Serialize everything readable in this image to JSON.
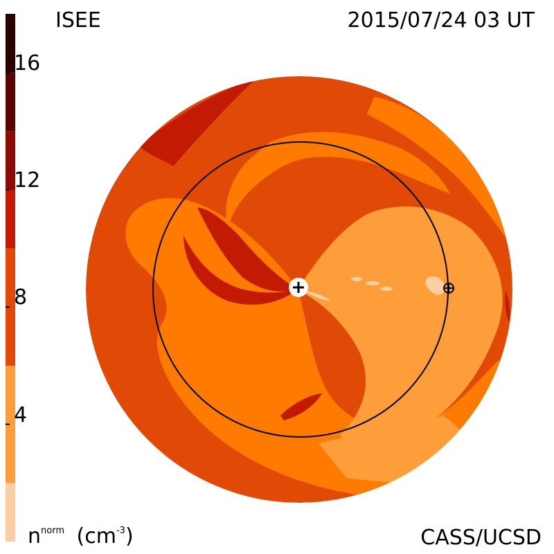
{
  "header": {
    "source": "ISEE",
    "timestamp": "2015/07/24 03 UT"
  },
  "footer": {
    "credit": "CASS/UCSD",
    "unit_label": "n",
    "unit_sup": "norm",
    "unit_tail": "(cm",
    "unit_exp": "-3",
    "unit_close": ")"
  },
  "colorbar": {
    "min": 0,
    "max": 18,
    "tick_values": [
      4,
      8,
      12,
      16
    ],
    "tick_labels": [
      "4",
      "8",
      "12",
      "16"
    ],
    "bands": [
      {
        "from": 0,
        "to": 2,
        "color": "#FCCEA3"
      },
      {
        "from": 2,
        "to": 6,
        "color": "#FD9E3B"
      },
      {
        "from": 6,
        "to": 10,
        "color": "#E04A06"
      },
      {
        "from": 10,
        "to": 12,
        "color": "#C21A03"
      },
      {
        "from": 12,
        "to": 14,
        "color": "#8C0A02"
      },
      {
        "from": 14,
        "to": 16,
        "color": "#5A0501"
      },
      {
        "from": 16,
        "to": 18,
        "color": "#2A0300"
      }
    ]
  },
  "colors": {
    "disk_outer": "#E04A06",
    "mid": "#FF7A00",
    "light": "#FD9E3B",
    "dark": "#C21A03",
    "pale": "#FCCEA3",
    "orbit_line": "#000000"
  },
  "markers": {
    "sun": "+",
    "earth": "⊕"
  }
}
